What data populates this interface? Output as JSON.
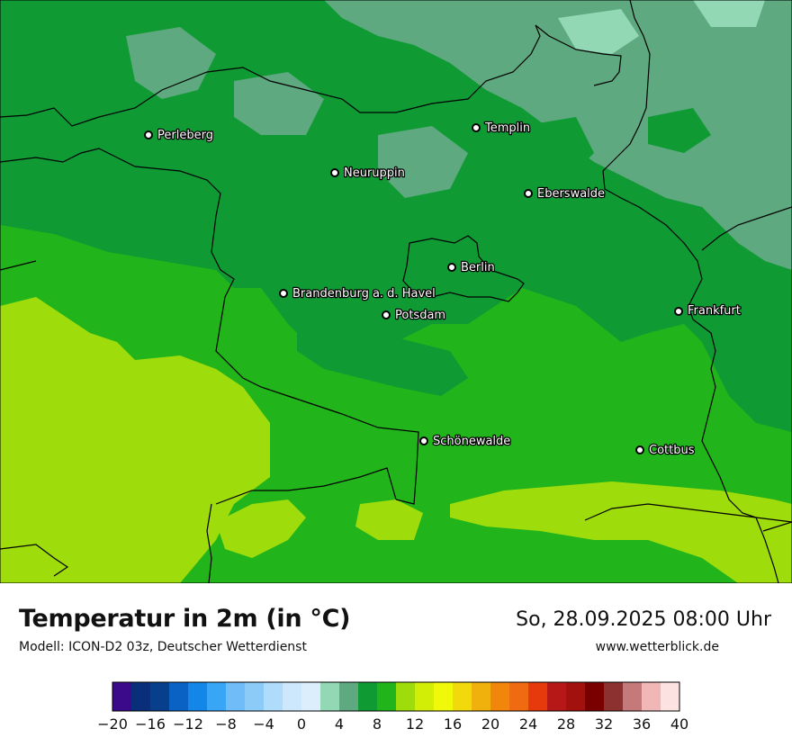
{
  "title": "Temperatur in 2m (in °C)",
  "model": "Modell: ICON-D2 03z, Deutscher Wetterdienst",
  "datetime": "So, 28.09.2025 08:00 Uhr",
  "website": "www.wetterblick.de",
  "cities": [
    {
      "name": "Perleberg"
    },
    {
      "name": "Templin"
    },
    {
      "name": "Neuruppin"
    },
    {
      "name": "Eberswalde"
    },
    {
      "name": "Berlin"
    },
    {
      "name": "Brandenburg a. d. Havel"
    },
    {
      "name": "Potsdam"
    },
    {
      "name": "Frankfurt"
    },
    {
      "name": "Schönewalde"
    },
    {
      "name": "Cottbus"
    }
  ],
  "legend": {
    "colors": [
      "#3a0a8a",
      "#0a2f7a",
      "#083f8c",
      "#0a63c4",
      "#1287e8",
      "#39a6f5",
      "#6fbcf8",
      "#8ccbf8",
      "#b0dcfb",
      "#cde7fc",
      "#dcedfc",
      "#92d8b4",
      "#5ea97f",
      "#0f9a34",
      "#21b41b",
      "#9edc0c",
      "#d2ed06",
      "#f1f90a",
      "#f1d90c",
      "#f1b10c",
      "#f1860b",
      "#ef6a10",
      "#e6390c",
      "#b61818",
      "#a3110e",
      "#7a0000",
      "#8c3030",
      "#c47a7a",
      "#f1b6b6",
      "#fde2e2"
    ],
    "tick_labels": [
      "−20",
      "−16",
      "−12",
      "−8",
      "−4",
      "0",
      "4",
      "8",
      "12",
      "16",
      "20",
      "24",
      "28",
      "32",
      "36",
      "40"
    ]
  },
  "map_colors": {
    "band_2_4": "#5ea97f",
    "band_4_6": "#0f9a34",
    "band_6_8": "#21b41b",
    "band_8_10": "#9edc0c",
    "band_0_2": "#92d8b4",
    "border": "#000000"
  }
}
